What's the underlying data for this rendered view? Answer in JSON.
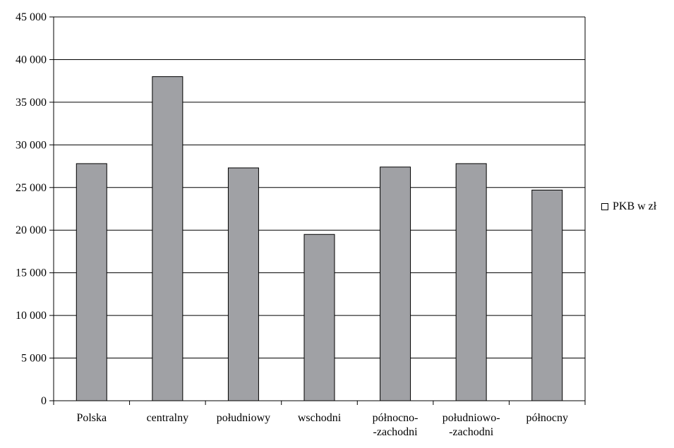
{
  "chart_data": {
    "type": "bar",
    "categories": [
      "Polska",
      "centralny",
      "południowy",
      "wschodni",
      "północno-\n-zachodni",
      "południowo-\n-zachodni",
      "północny"
    ],
    "series": [
      {
        "name": "PKB w zł",
        "values": [
          27800,
          38000,
          27300,
          19500,
          27400,
          27800,
          24700
        ]
      }
    ],
    "ylim": [
      0,
      45000
    ],
    "yticks": [
      0,
      5000,
      10000,
      15000,
      20000,
      25000,
      30000,
      35000,
      40000,
      45000
    ],
    "ytick_labels": [
      "0",
      "5 000",
      "10 000",
      "15 000",
      "20 000",
      "25 000",
      "30 000",
      "35 000",
      "40 000",
      "45 000"
    ],
    "grid": true,
    "legend_position": "right",
    "colors": {
      "bar_fill": "#a0a1a5",
      "bar_stroke": "#000000",
      "grid": "#000000"
    }
  }
}
